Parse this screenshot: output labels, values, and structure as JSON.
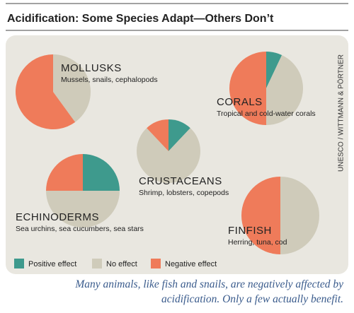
{
  "chart_data": {
    "type": "pie",
    "title": "Acidification: Some Species Adapt—Others Don’t",
    "source": "UNESCO / WITTMANN & PÖRTNER",
    "caption": "Many animals, like fish and snails, are negatively affected by acidification. Only a few actually benefit.",
    "categories": [
      "Positive effect",
      "No effect",
      "Negative effect"
    ],
    "colors": [
      "#3e9a8d",
      "#cfcbba",
      "#ef7b5a"
    ],
    "pies": [
      {
        "name": "MOLLUSKS",
        "subtitle": "Mussels, snails, cephalopods",
        "values": [
          0,
          40,
          60
        ]
      },
      {
        "name": "CORALS",
        "subtitle": "Tropical and cold-water corals",
        "values": [
          7,
          43,
          50
        ]
      },
      {
        "name": "CRUSTACEANS",
        "subtitle": "Shrimp, lobsters, copepods",
        "values": [
          12,
          76,
          12
        ]
      },
      {
        "name": "ECHINODERMS",
        "subtitle": "Sea urchins, sea cucumbers, sea stars",
        "values": [
          25,
          50,
          25
        ]
      },
      {
        "name": "FINFISH",
        "subtitle": "Herring, tuna, cod",
        "values": [
          0,
          50,
          50
        ]
      }
    ]
  }
}
